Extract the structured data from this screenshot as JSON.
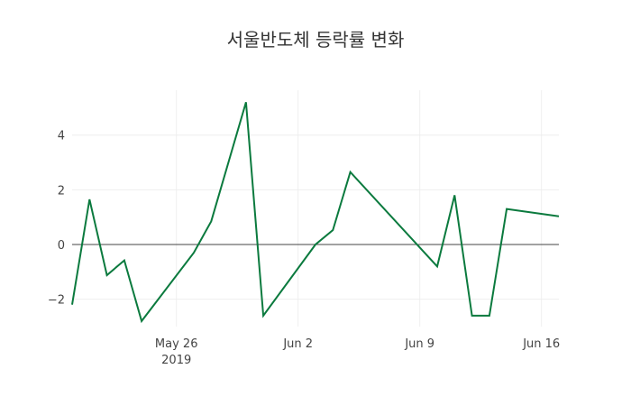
{
  "chart_data": {
    "type": "line",
    "title": "서울반도체 등락률 변화",
    "xlabel": "",
    "ylabel": "",
    "x": [
      "2019-05-20",
      "2019-05-21",
      "2019-05-22",
      "2019-05-23",
      "2019-05-24",
      "2019-05-27",
      "2019-05-28",
      "2019-05-30",
      "2019-05-31",
      "2019-06-03",
      "2019-06-04",
      "2019-06-05",
      "2019-06-10",
      "2019-06-11",
      "2019-06-12",
      "2019-06-13",
      "2019-06-14",
      "2019-06-17"
    ],
    "series": [
      {
        "name": "등락률",
        "color": "#0b7a3e",
        "values": [
          -2.2,
          1.65,
          -1.12,
          -0.58,
          -2.8,
          -0.3,
          0.85,
          5.2,
          -2.6,
          0.0,
          0.53,
          2.65,
          -0.8,
          1.8,
          -2.6,
          -2.6,
          1.3,
          1.03
        ]
      }
    ],
    "xlim": [
      "2019-05-20",
      "2019-06-17"
    ],
    "ylim": [
      -3.0,
      5.64
    ],
    "y_ticks": [
      -2,
      0,
      2,
      4
    ],
    "y_tick_labels": [
      "−2",
      "0",
      "2",
      "4"
    ],
    "x_ticks": [
      "2019-05-26",
      "2019-06-02",
      "2019-06-09",
      "2019-06-16"
    ],
    "x_tick_labels": [
      "May 26",
      "Jun 2",
      "Jun 9",
      "Jun 16"
    ],
    "x_tick_sublabel": "2019",
    "grid": true,
    "zeroline": true,
    "legend": "none"
  }
}
